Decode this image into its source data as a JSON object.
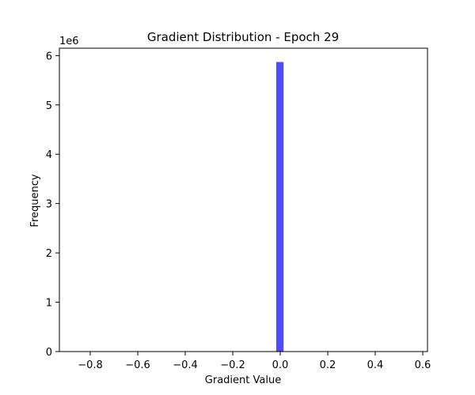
{
  "chart_data": {
    "type": "bar",
    "title": "Gradient Distribution - Epoch 29",
    "xlabel": "Gradient Value",
    "ylabel": "Frequency",
    "y_offset_label": "1e6",
    "xlim": [
      -0.93,
      0.62
    ],
    "ylim": [
      0,
      6.15
    ],
    "x_ticks": [
      {
        "value": -0.8,
        "label": "−0.8"
      },
      {
        "value": -0.6,
        "label": "−0.6"
      },
      {
        "value": -0.4,
        "label": "−0.4"
      },
      {
        "value": -0.2,
        "label": "−0.2"
      },
      {
        "value": 0.0,
        "label": "0.0"
      },
      {
        "value": 0.2,
        "label": "0.2"
      },
      {
        "value": 0.4,
        "label": "0.4"
      },
      {
        "value": 0.6,
        "label": "0.6"
      }
    ],
    "y_ticks": [
      {
        "value": 0,
        "label": "0"
      },
      {
        "value": 1,
        "label": "1"
      },
      {
        "value": 2,
        "label": "2"
      },
      {
        "value": 3,
        "label": "3"
      },
      {
        "value": 4,
        "label": "4"
      },
      {
        "value": 5,
        "label": "5"
      },
      {
        "value": 6,
        "label": "6"
      }
    ],
    "bars": [
      {
        "x0": -0.017,
        "x1": 0.014,
        "value": 5.87
      }
    ],
    "bar_color": "#4d4dff",
    "grid": false
  }
}
